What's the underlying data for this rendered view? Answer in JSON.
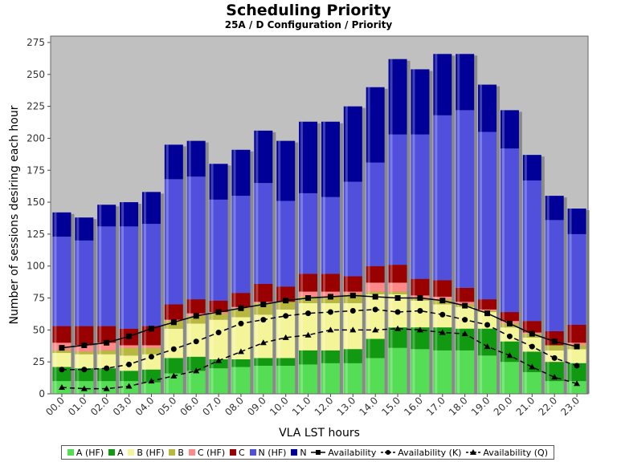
{
  "title": "Scheduling Priority",
  "subtitle": "25A / D Configuration /  Priority",
  "colors": {
    "A_HF": "#55dd55",
    "A": "#119911",
    "B_HF": "#f4f499",
    "B": "#b8b840",
    "C_HF": "#ff8888",
    "C": "#990000",
    "N_HF": "#5050dd",
    "N": "#000099",
    "plot_bg": "#c0c0c0"
  },
  "chart_data": {
    "type": "bar",
    "title": "Scheduling Priority",
    "subtitle": "25A / D Configuration /  Priority",
    "xlabel": "VLA LST hours",
    "ylabel": "Number of sessions desiring each hour",
    "ylim": [
      0,
      280
    ],
    "yticks": [
      0,
      25,
      50,
      75,
      100,
      125,
      150,
      175,
      200,
      225,
      250,
      275
    ],
    "grid": false,
    "legend_position": "bottom",
    "categories": [
      "00.0",
      "01.0",
      "02.0",
      "03.0",
      "04.0",
      "05.0",
      "06.0",
      "07.0",
      "08.0",
      "09.0",
      "10.0",
      "11.0",
      "12.0",
      "13.0",
      "14.0",
      "15.0",
      "16.0",
      "17.0",
      "18.0",
      "19.0",
      "20.0",
      "21.0",
      "22.0",
      "23.0"
    ],
    "stack_boundaries": {
      "A_HF": [
        10,
        10,
        10,
        10,
        9,
        16,
        18,
        20,
        21,
        22,
        22,
        23,
        24,
        24,
        28,
        36,
        35,
        34,
        34,
        30,
        25,
        17,
        10,
        10
      ],
      "A": [
        21,
        20,
        20,
        18,
        19,
        28,
        29,
        27,
        27,
        28,
        28,
        34,
        34,
        35,
        43,
        52,
        52,
        52,
        51,
        51,
        41,
        33,
        25,
        24
      ],
      "B_HF": [
        32,
        31,
        31,
        30,
        31,
        51,
        55,
        58,
        60,
        62,
        66,
        71,
        71,
        71,
        78,
        78,
        73,
        70,
        68,
        64,
        52,
        44,
        34,
        35
      ],
      "B": [
        34,
        33,
        34,
        36,
        36,
        57,
        61,
        63,
        67,
        71,
        73,
        76,
        76,
        78,
        80,
        80,
        75,
        74,
        70,
        65,
        55,
        47,
        38,
        38
      ],
      "C_HF": [
        40,
        38,
        40,
        38,
        38,
        58,
        63,
        64,
        68,
        72,
        72,
        80,
        80,
        80,
        87,
        87,
        77,
        76,
        72,
        66,
        57,
        48,
        38,
        40
      ],
      "C": [
        53,
        53,
        53,
        51,
        53,
        70,
        74,
        73,
        79,
        86,
        84,
        94,
        94,
        92,
        100,
        101,
        90,
        89,
        83,
        74,
        64,
        57,
        49,
        54
      ],
      "N_HF": [
        123,
        120,
        131,
        131,
        133,
        168,
        170,
        152,
        155,
        165,
        151,
        157,
        154,
        166,
        181,
        203,
        203,
        218,
        222,
        205,
        192,
        167,
        136,
        125
      ],
      "N": [
        142,
        138,
        148,
        150,
        158,
        195,
        198,
        180,
        191,
        206,
        198,
        213,
        213,
        225,
        240,
        262,
        254,
        266,
        266,
        242,
        222,
        187,
        155,
        145
      ]
    },
    "series": [
      {
        "name": "A (HF)",
        "color": "#55dd55"
      },
      {
        "name": "A",
        "color": "#119911"
      },
      {
        "name": "B (HF)",
        "color": "#f4f499"
      },
      {
        "name": "B",
        "color": "#b8b840"
      },
      {
        "name": "C (HF)",
        "color": "#ff8888"
      },
      {
        "name": "C",
        "color": "#990000"
      },
      {
        "name": "N (HF)",
        "color": "#5050dd"
      },
      {
        "name": "N",
        "color": "#000099"
      }
    ],
    "lines": [
      {
        "name": "Availability",
        "marker": "square",
        "dash": "solid",
        "values": [
          36,
          38,
          40,
          45,
          51,
          56,
          61,
          64,
          67,
          70,
          73,
          75,
          76,
          77,
          76,
          75,
          75,
          73,
          69,
          63,
          55,
          47,
          41,
          37
        ]
      },
      {
        "name": "Availability (K)",
        "marker": "circle",
        "dash": "dashed",
        "values": [
          19,
          19,
          20,
          23,
          29,
          35,
          41,
          48,
          55,
          58,
          61,
          63,
          64,
          65,
          66,
          64,
          65,
          62,
          58,
          54,
          45,
          37,
          28,
          22
        ]
      },
      {
        "name": "Availability (Q)",
        "marker": "triangle",
        "dash": "dashed",
        "values": [
          5,
          4,
          4,
          6,
          10,
          14,
          18,
          26,
          33,
          40,
          44,
          46,
          50,
          50,
          50,
          51,
          50,
          48,
          47,
          37,
          30,
          21,
          13,
          8
        ]
      }
    ]
  },
  "legend": [
    {
      "label": "A (HF)",
      "kind": "swatch",
      "color": "#55dd55"
    },
    {
      "label": "A",
      "kind": "swatch",
      "color": "#119911"
    },
    {
      "label": "B (HF)",
      "kind": "swatch",
      "color": "#f4f499"
    },
    {
      "label": "B",
      "kind": "swatch",
      "color": "#b8b840"
    },
    {
      "label": "C (HF)",
      "kind": "swatch",
      "color": "#ff8888"
    },
    {
      "label": "C",
      "kind": "swatch",
      "color": "#990000"
    },
    {
      "label": "N (HF)",
      "kind": "swatch",
      "color": "#5050dd"
    },
    {
      "label": "N",
      "kind": "swatch",
      "color": "#000099"
    },
    {
      "label": "Availability",
      "kind": "line",
      "marker": "square"
    },
    {
      "label": "Availability (K)",
      "kind": "line",
      "marker": "circle"
    },
    {
      "label": "Availability (Q)",
      "kind": "line",
      "marker": "triangle"
    }
  ]
}
